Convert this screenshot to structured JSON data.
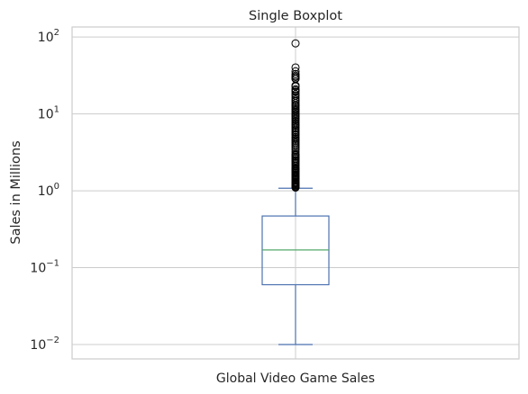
{
  "chart_data": {
    "type": "boxplot",
    "title": "Single Boxplot",
    "xlabel": "",
    "ylabel": "Sales in Millions",
    "yscale": "log",
    "ylim": [
      0.0065,
      135
    ],
    "grid": true,
    "categories": [
      "Global Video Game Sales"
    ],
    "yticks": [
      {
        "value": 0.01,
        "base": "10",
        "exp": "−2"
      },
      {
        "value": 0.1,
        "base": "10",
        "exp": "−1"
      },
      {
        "value": 1,
        "base": "10",
        "exp": "0"
      },
      {
        "value": 10,
        "base": "10",
        "exp": "1"
      },
      {
        "value": 100,
        "base": "10",
        "exp": "2"
      }
    ],
    "box": {
      "whisker_low": 0.01,
      "q1": 0.06,
      "median": 0.17,
      "q3": 0.47,
      "whisker_high": 1.08
    },
    "outliers": [
      82.7,
      40.2,
      35.8,
      33.0,
      31.4,
      30.3,
      29.0,
      28.6,
      23.4,
      22.7,
      21.0,
      20.2,
      19.4,
      18.1,
      17.3,
      16.2,
      15.3,
      14.6,
      13.8,
      13.1,
      12.6,
      12.0,
      11.5,
      11.0,
      10.5,
      10.0,
      9.6,
      9.2,
      8.8,
      8.4,
      8.0,
      7.6,
      7.3,
      7.0,
      6.7,
      6.4,
      6.1,
      5.8,
      5.5,
      5.3,
      5.0,
      4.8,
      4.6,
      4.4,
      4.2,
      4.0,
      3.8,
      3.6,
      3.4,
      3.2,
      3.0,
      2.9,
      2.8,
      2.7,
      2.6,
      2.5,
      2.4,
      2.3,
      2.2,
      2.1,
      2.0,
      1.95,
      1.9,
      1.85,
      1.8,
      1.75,
      1.7,
      1.65,
      1.6,
      1.55,
      1.5,
      1.45,
      1.4,
      1.35,
      1.3,
      1.27,
      1.24,
      1.21,
      1.18,
      1.15,
      1.12,
      1.1
    ],
    "colors": {
      "box": "#4c72b0",
      "median": "#55a868",
      "grid": "#cccccc",
      "spine": "#cccccc",
      "text": "#262626",
      "outlier": "#000000"
    }
  }
}
